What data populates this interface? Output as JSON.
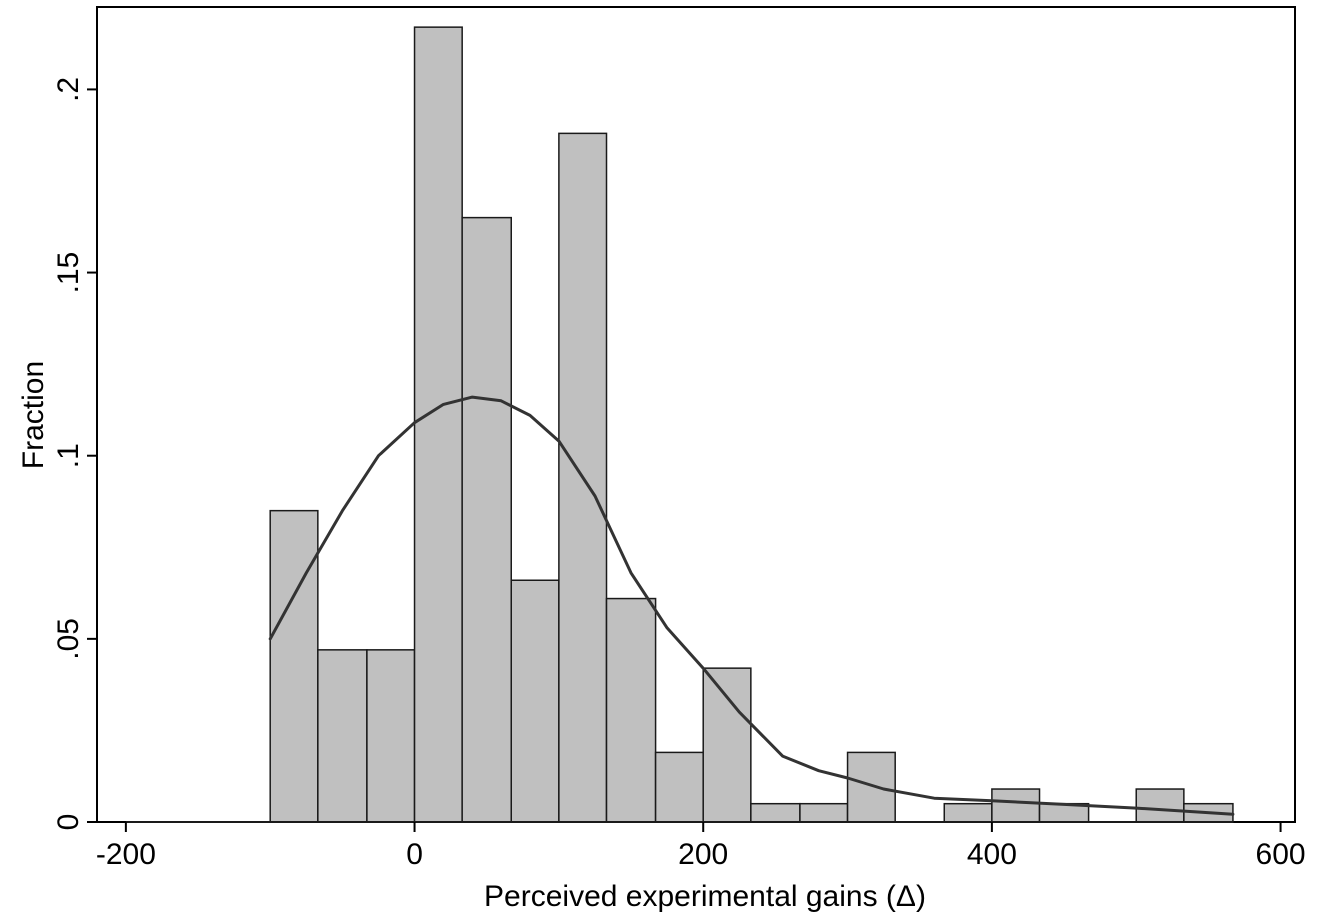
{
  "chart_data": {
    "type": "bar",
    "subtype": "histogram_with_density_line",
    "xlabel": "Perceived experimental gains (Δ)",
    "ylabel": "Fraction",
    "xlim": [
      -220,
      610
    ],
    "ylim": [
      0,
      0.2225
    ],
    "x_ticks": [
      -200,
      0,
      200,
      400,
      600
    ],
    "x_tick_labels": [
      "-200",
      "0",
      "200",
      "400",
      "600"
    ],
    "y_ticks": [
      0,
      0.05,
      0.1,
      0.15,
      0.2
    ],
    "y_tick_labels": [
      "0",
      ".05",
      ".1",
      ".15",
      ".2"
    ],
    "grid": false,
    "bar_color": "#c0c0c0",
    "bar_edge_color": "#1a1a1a",
    "line_color": "#333333",
    "baseline_x_start": -200,
    "bins": [
      {
        "x0": -100,
        "x1": -67,
        "value": 0.085
      },
      {
        "x0": -67,
        "x1": -33,
        "value": 0.047
      },
      {
        "x0": -33,
        "x1": 0,
        "value": 0.047
      },
      {
        "x0": 0,
        "x1": 33,
        "value": 0.217
      },
      {
        "x0": 33,
        "x1": 67,
        "value": 0.165
      },
      {
        "x0": 67,
        "x1": 100,
        "value": 0.066
      },
      {
        "x0": 100,
        "x1": 133,
        "value": 0.188
      },
      {
        "x0": 133,
        "x1": 167,
        "value": 0.061
      },
      {
        "x0": 167,
        "x1": 200,
        "value": 0.019
      },
      {
        "x0": 200,
        "x1": 233,
        "value": 0.042
      },
      {
        "x0": 233,
        "x1": 267,
        "value": 0.005
      },
      {
        "x0": 267,
        "x1": 300,
        "value": 0.005
      },
      {
        "x0": 300,
        "x1": 333,
        "value": 0.019
      },
      {
        "x0": 333,
        "x1": 367,
        "value": 0
      },
      {
        "x0": 367,
        "x1": 400,
        "value": 0.005
      },
      {
        "x0": 400,
        "x1": 433,
        "value": 0.009
      },
      {
        "x0": 433,
        "x1": 467,
        "value": 0.005
      },
      {
        "x0": 467,
        "x1": 500,
        "value": 0
      },
      {
        "x0": 500,
        "x1": 533,
        "value": 0.009
      },
      {
        "x0": 533,
        "x1": 567,
        "value": 0.005
      }
    ],
    "density_line": {
      "x": [
        -100,
        -75,
        -50,
        -25,
        0,
        20,
        40,
        60,
        80,
        100,
        125,
        150,
        175,
        200,
        225,
        255,
        280,
        300,
        325,
        360,
        400,
        450,
        500,
        540,
        567
      ],
      "y": [
        0.05,
        0.068,
        0.085,
        0.1,
        0.109,
        0.114,
        0.116,
        0.115,
        0.111,
        0.104,
        0.089,
        0.068,
        0.053,
        0.042,
        0.03,
        0.018,
        0.014,
        0.012,
        0.009,
        0.0065,
        0.0058,
        0.0048,
        0.0038,
        0.0028,
        0.0021
      ]
    }
  }
}
